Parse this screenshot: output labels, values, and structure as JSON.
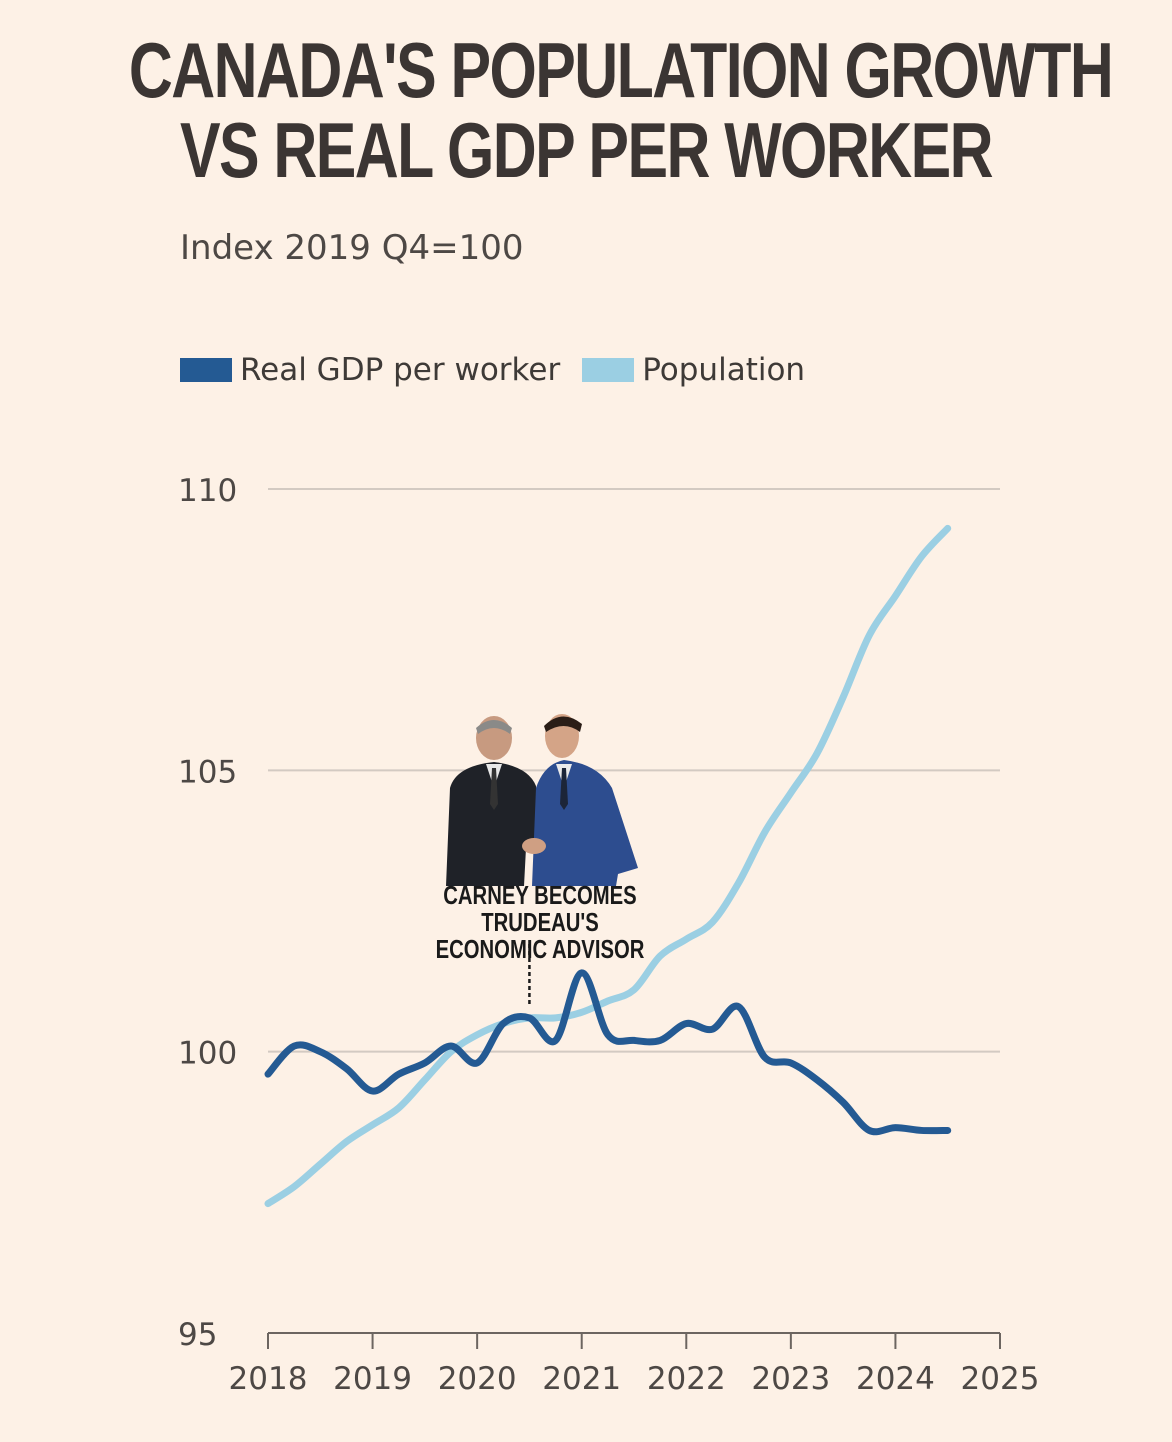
{
  "title_lines": [
    "CANADA'S POPULATION GROWTH",
    "VS REAL GDP PER WORKER"
  ],
  "annotation": {
    "lines": [
      "CARNEY BECOMES TRUDEAU'S",
      "ECONOMIC ADVISOR"
    ],
    "x": 2020.5
  },
  "photo": {
    "icon": "handshake-photo-icon"
  },
  "chart_data": {
    "type": "line",
    "title": "CANADA'S POPULATION GROWTH VS REAL GDP PER WORKER",
    "subtitle": "Index 2019 Q4=100",
    "xlabel": "",
    "ylabel": "",
    "xlim": [
      2018,
      2025
    ],
    "ylim": [
      95,
      110
    ],
    "xticks": [
      "2018",
      "2019",
      "2020",
      "2021",
      "2022",
      "2023",
      "2024",
      "2025"
    ],
    "yticks": [
      "95",
      "100",
      "105",
      "110"
    ],
    "grid": true,
    "legend_position": "top-left",
    "series": [
      {
        "name": "Real GDP per worker",
        "color": "#245a93",
        "x": [
          2018.0,
          2018.25,
          2018.5,
          2018.75,
          2019.0,
          2019.25,
          2019.5,
          2019.75,
          2020.0,
          2020.25,
          2020.5,
          2020.75,
          2021.0,
          2021.25,
          2021.5,
          2021.75,
          2022.0,
          2022.25,
          2022.5,
          2022.75,
          2023.0,
          2023.25,
          2023.5,
          2023.75,
          2024.0,
          2024.25,
          2024.5
        ],
        "values": [
          99.6,
          100.1,
          100.0,
          99.7,
          99.3,
          99.6,
          99.8,
          100.1,
          99.8,
          100.5,
          100.6,
          100.2,
          101.4,
          100.3,
          100.2,
          100.2,
          100.5,
          100.4,
          100.8,
          99.9,
          99.8,
          99.5,
          99.1,
          98.6,
          98.65,
          98.6,
          98.6
        ]
      },
      {
        "name": "Population",
        "color": "#9bcfe3",
        "x": [
          2018.0,
          2018.25,
          2018.5,
          2018.75,
          2019.0,
          2019.25,
          2019.5,
          2019.75,
          2020.0,
          2020.25,
          2020.5,
          2020.75,
          2021.0,
          2021.25,
          2021.5,
          2021.75,
          2022.0,
          2022.25,
          2022.5,
          2022.75,
          2023.0,
          2023.25,
          2023.5,
          2023.75,
          2024.0,
          2024.25,
          2024.5
        ],
        "values": [
          97.3,
          97.6,
          98.0,
          98.4,
          98.7,
          99.0,
          99.5,
          100.0,
          100.3,
          100.5,
          100.6,
          100.6,
          100.7,
          100.9,
          101.1,
          101.7,
          102.0,
          102.3,
          103.0,
          103.9,
          104.6,
          105.3,
          106.3,
          107.4,
          108.1,
          108.8,
          109.3
        ]
      }
    ]
  }
}
